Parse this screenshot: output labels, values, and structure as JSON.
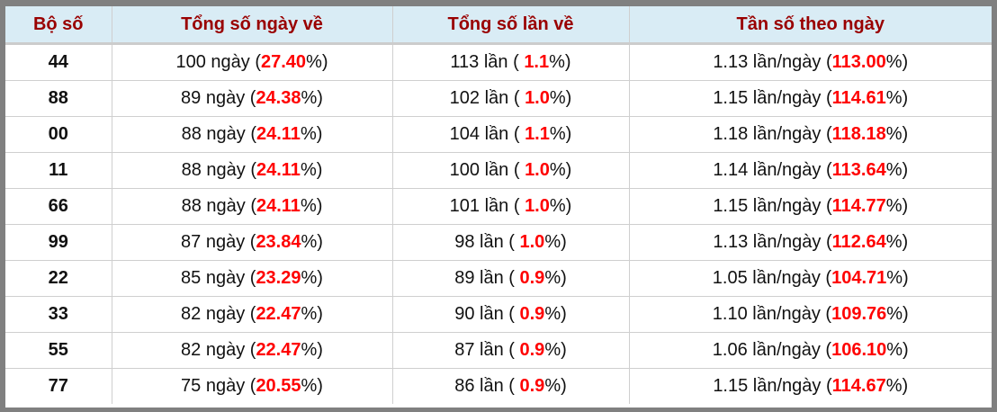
{
  "table": {
    "headers": [
      "Bộ số",
      "Tổng số ngày về",
      "Tổng số lần về",
      "Tần số theo ngày"
    ],
    "rows": [
      {
        "bo_so": "44",
        "ngay": "100 ngày (",
        "ngay_pct": "27.40",
        "lan": "113 lần ( ",
        "lan_pct": "1.1",
        "tan": "1.13 lần/ngày (",
        "tan_pct": "113.00"
      },
      {
        "bo_so": "88",
        "ngay": "89 ngày (",
        "ngay_pct": "24.38",
        "lan": "102 lần ( ",
        "lan_pct": "1.0",
        "tan": "1.15 lần/ngày (",
        "tan_pct": "114.61"
      },
      {
        "bo_so": "00",
        "ngay": "88 ngày (",
        "ngay_pct": "24.11",
        "lan": "104 lần ( ",
        "lan_pct": "1.1",
        "tan": "1.18 lần/ngày (",
        "tan_pct": "118.18"
      },
      {
        "bo_so": "11",
        "ngay": "88 ngày (",
        "ngay_pct": "24.11",
        "lan": "100 lần ( ",
        "lan_pct": "1.0",
        "tan": "1.14 lần/ngày (",
        "tan_pct": "113.64"
      },
      {
        "bo_so": "66",
        "ngay": "88 ngày (",
        "ngay_pct": "24.11",
        "lan": "101 lần ( ",
        "lan_pct": "1.0",
        "tan": "1.15 lần/ngày (",
        "tan_pct": "114.77"
      },
      {
        "bo_so": "99",
        "ngay": "87 ngày (",
        "ngay_pct": "23.84",
        "lan": "98 lần ( ",
        "lan_pct": "1.0",
        "tan": "1.13 lần/ngày (",
        "tan_pct": "112.64"
      },
      {
        "bo_so": "22",
        "ngay": "85 ngày (",
        "ngay_pct": "23.29",
        "lan": "89 lần ( ",
        "lan_pct": "0.9",
        "tan": "1.05 lần/ngày (",
        "tan_pct": "104.71"
      },
      {
        "bo_so": "33",
        "ngay": "82 ngày (",
        "ngay_pct": "22.47",
        "lan": "90 lần ( ",
        "lan_pct": "0.9",
        "tan": "1.10 lần/ngày (",
        "tan_pct": "109.76"
      },
      {
        "bo_so": "55",
        "ngay": "82 ngày (",
        "ngay_pct": "22.47",
        "lan": "87 lần ( ",
        "lan_pct": "0.9",
        "tan": "1.06 lần/ngày (",
        "tan_pct": "106.10"
      },
      {
        "bo_so": "77",
        "ngay": "75 ngày (",
        "ngay_pct": "20.55",
        "lan": "86 lần ( ",
        "lan_pct": "0.9",
        "tan": "1.15 lần/ngày (",
        "tan_pct": "114.67"
      }
    ],
    "pct_suffix": "%)"
  },
  "colors": {
    "header_bg": "#d9ecf5",
    "header_text": "#990000",
    "highlight": "#ff0000",
    "frame": "#808080"
  }
}
